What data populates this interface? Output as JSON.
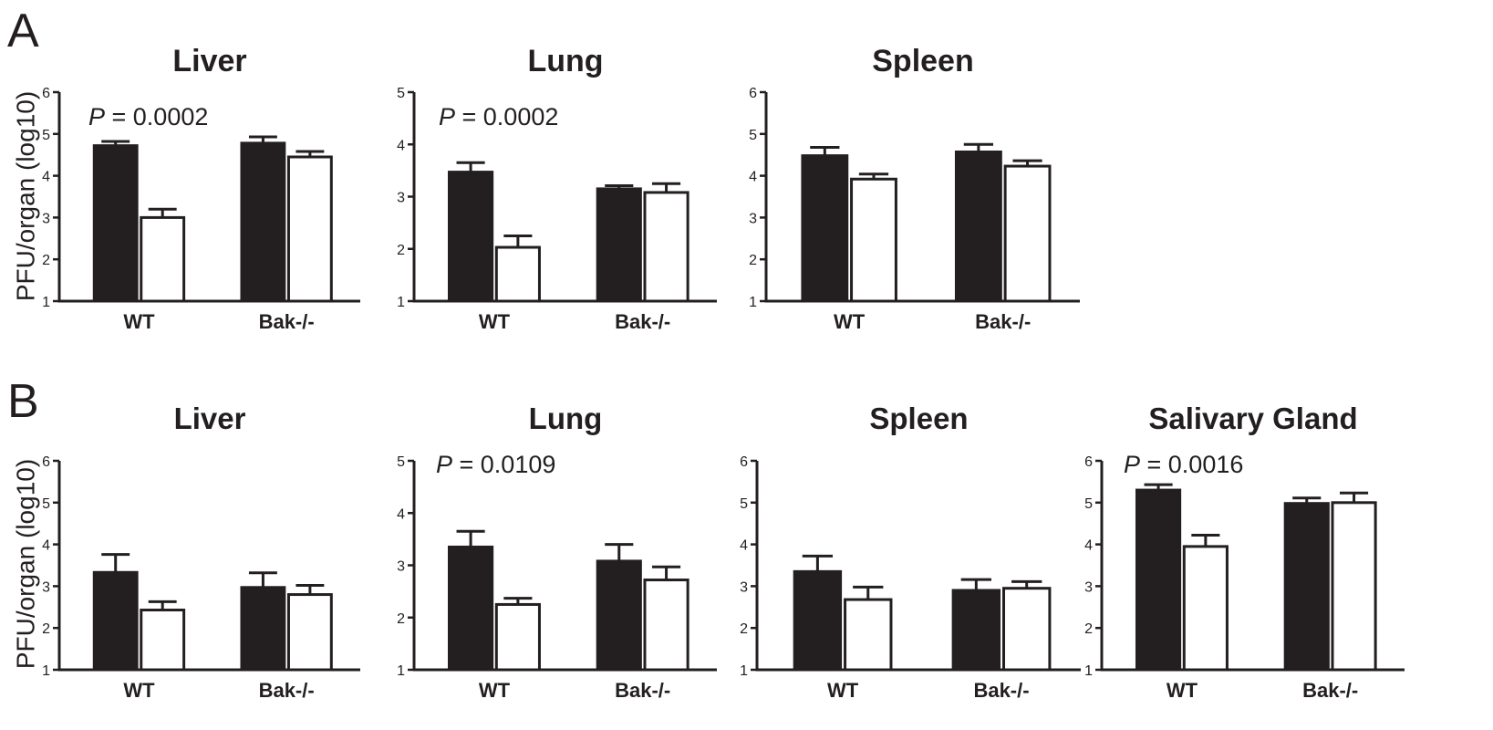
{
  "rows": [
    {
      "label": "A",
      "ylabel": "PFU/organ (log10)",
      "charts": [
        {
          "type": "bar",
          "title": "Liver",
          "ylim": [
            1,
            6
          ],
          "yticks": [
            1,
            2,
            3,
            4,
            5,
            6
          ],
          "categories": [
            "WT",
            "Bak-/-"
          ],
          "series": [
            {
              "fill": "#231f20",
              "values": [
                4.72,
                4.78
              ],
              "errors": [
                0.1,
                0.15
              ]
            },
            {
              "fill": "#ffffff",
              "values": [
                3.0,
                4.45
              ],
              "errors": [
                0.2,
                0.13
              ]
            }
          ],
          "p_value": "0.0002"
        },
        {
          "type": "bar",
          "title": "Lung",
          "ylim": [
            1,
            5
          ],
          "yticks": [
            1,
            2,
            3,
            4,
            5
          ],
          "categories": [
            "WT",
            "Bak-/-"
          ],
          "series": [
            {
              "fill": "#231f20",
              "values": [
                3.47,
                3.15
              ],
              "errors": [
                0.18,
                0.06
              ]
            },
            {
              "fill": "#ffffff",
              "values": [
                2.03,
                3.08
              ],
              "errors": [
                0.22,
                0.17
              ]
            }
          ],
          "p_value": "0.0002"
        },
        {
          "type": "bar",
          "title": "Spleen",
          "ylim": [
            1,
            6
          ],
          "yticks": [
            1,
            2,
            3,
            4,
            5,
            6
          ],
          "categories": [
            "WT",
            "Bak-/-"
          ],
          "series": [
            {
              "fill": "#231f20",
              "values": [
                4.48,
                4.57
              ],
              "errors": [
                0.2,
                0.18
              ]
            },
            {
              "fill": "#ffffff",
              "values": [
                3.92,
                4.23
              ],
              "errors": [
                0.12,
                0.13
              ]
            }
          ],
          "p_value": ""
        }
      ]
    },
    {
      "label": "B",
      "ylabel": "PFU/organ (log10)",
      "charts": [
        {
          "type": "bar",
          "title": "Liver",
          "ylim": [
            1,
            6
          ],
          "yticks": [
            1,
            2,
            3,
            4,
            5,
            6
          ],
          "categories": [
            "WT",
            "Bak-/-"
          ],
          "series": [
            {
              "fill": "#231f20",
              "values": [
                3.33,
                2.97
              ],
              "errors": [
                0.43,
                0.35
              ]
            },
            {
              "fill": "#ffffff",
              "values": [
                2.43,
                2.8
              ],
              "errors": [
                0.2,
                0.22
              ]
            }
          ],
          "p_value": ""
        },
        {
          "type": "bar",
          "title": "Lung",
          "ylim": [
            1,
            5
          ],
          "yticks": [
            1,
            2,
            3,
            4,
            5
          ],
          "categories": [
            "WT",
            "Bak-/-"
          ],
          "series": [
            {
              "fill": "#231f20",
              "values": [
                3.35,
                3.08
              ],
              "errors": [
                0.3,
                0.32
              ]
            },
            {
              "fill": "#ffffff",
              "values": [
                2.25,
                2.72
              ],
              "errors": [
                0.12,
                0.25
              ]
            }
          ],
          "p_value": "0.0109"
        },
        {
          "type": "bar",
          "title": "Spleen",
          "ylim": [
            1,
            6
          ],
          "yticks": [
            1,
            2,
            3,
            4,
            5,
            6
          ],
          "categories": [
            "WT",
            "Bak-/-"
          ],
          "series": [
            {
              "fill": "#231f20",
              "values": [
                3.35,
                2.9
              ],
              "errors": [
                0.37,
                0.26
              ]
            },
            {
              "fill": "#ffffff",
              "values": [
                2.68,
                2.95
              ],
              "errors": [
                0.3,
                0.16
              ]
            }
          ],
          "p_value": ""
        },
        {
          "type": "bar",
          "title": "Salivary Gland",
          "ylim": [
            1,
            6
          ],
          "yticks": [
            1,
            2,
            3,
            4,
            5,
            6
          ],
          "categories": [
            "WT",
            "Bak-/-"
          ],
          "series": [
            {
              "fill": "#231f20",
              "values": [
                5.3,
                4.98
              ],
              "errors": [
                0.13,
                0.13
              ]
            },
            {
              "fill": "#ffffff",
              "values": [
                3.95,
                5.0
              ],
              "errors": [
                0.27,
                0.23
              ]
            }
          ],
          "p_value": "0.0016"
        }
      ]
    }
  ],
  "p_prefix": "P",
  "p_equals": " = "
}
